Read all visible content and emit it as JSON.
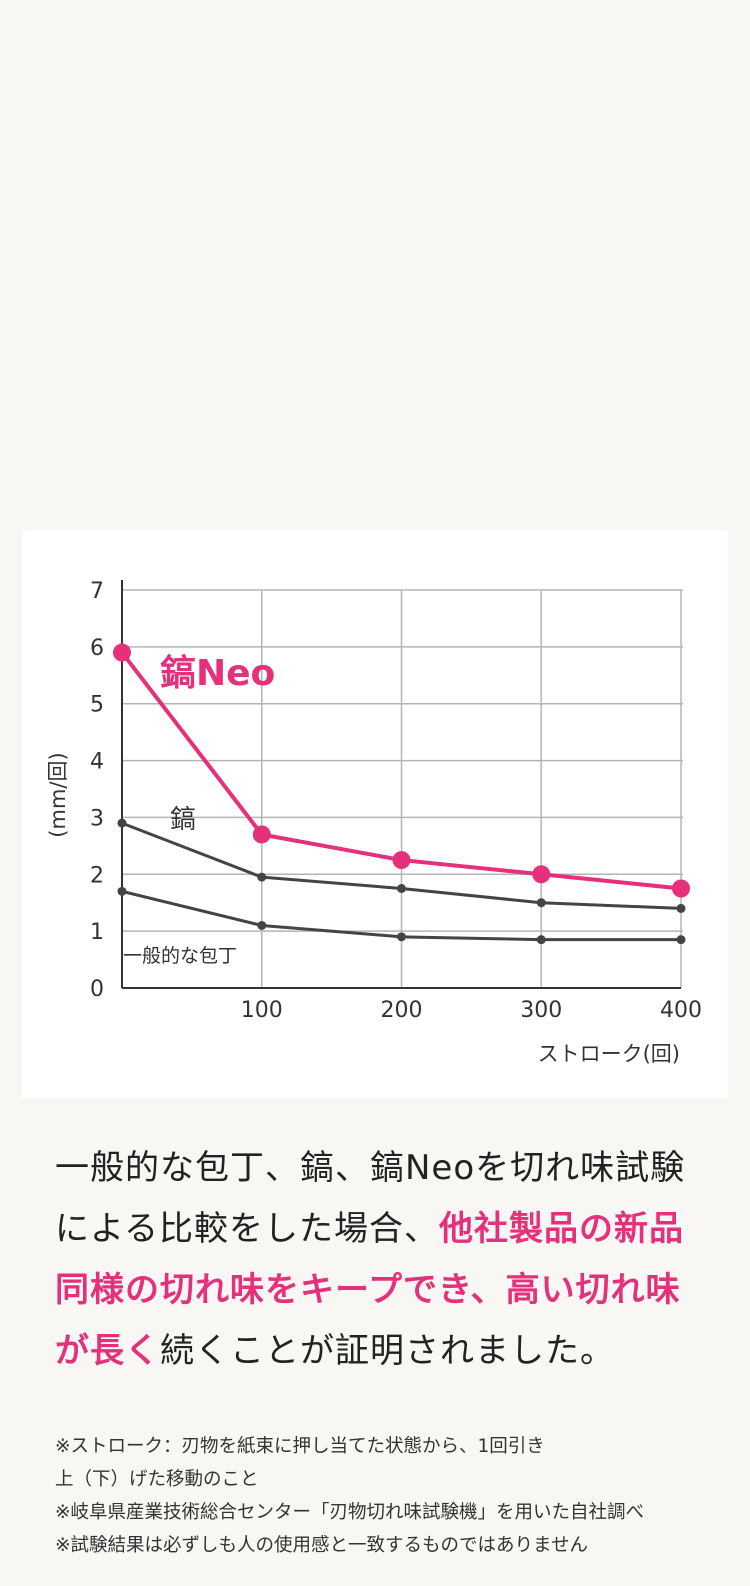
{
  "chart_data": {
    "type": "line",
    "xlabel": "ストローク(回)",
    "ylabel": "(mm/回)",
    "x": [
      0,
      100,
      200,
      300,
      400
    ],
    "xticks": [
      "100",
      "200",
      "300",
      "400"
    ],
    "yticks": [
      "0",
      "1",
      "2",
      "3",
      "4",
      "5",
      "6",
      "7"
    ],
    "ylim": [
      0,
      7
    ],
    "xlim": [
      0,
      400
    ],
    "grid": true,
    "series": [
      {
        "name": "鎬Neo",
        "color": "#e5307c",
        "values": [
          5.9,
          2.7,
          2.25,
          2.0,
          1.75
        ]
      },
      {
        "name": "鎬",
        "color": "#444444",
        "values": [
          2.9,
          1.95,
          1.75,
          1.5,
          1.4
        ]
      },
      {
        "name": "一般的な包丁",
        "color": "#444444",
        "values": [
          1.7,
          1.1,
          0.9,
          0.85,
          0.85
        ]
      }
    ]
  },
  "description": {
    "p1": "一般的な包丁、鎬、鎬Neoを切れ味試験による比較をした場合、",
    "p2_highlight": "他社製品の新品同様の切れ味をキープでき、高い切れ味が長く",
    "p3": "続くことが証明されました。"
  },
  "notes": [
    "※ストローク：刃物を紙束に押し当てた状態から、1回引き",
    "上（下）げた移動のこと",
    "※岐阜県産業技術総合センター「刃物切れ味試験機」を用いた自社調べ",
    "※試験結果は必ずしも人の使用感と一致するものではありません"
  ]
}
